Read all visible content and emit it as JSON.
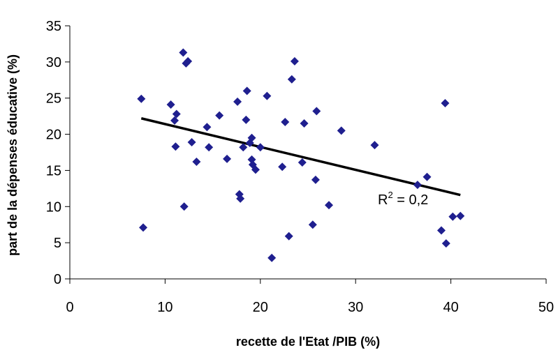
{
  "chart_data": {
    "type": "scatter",
    "xlabel": "recette de l'Etat /PIB (%)",
    "ylabel": "part de la dépenses éducative (%)",
    "xlim": [
      0,
      50
    ],
    "ylim": [
      0,
      35
    ],
    "xticks": [
      0,
      10,
      20,
      30,
      40,
      50
    ],
    "yticks": [
      0,
      5,
      10,
      15,
      20,
      25,
      30,
      35
    ],
    "grid": false,
    "marker": "diamond",
    "marker_color": "#1F1F8F",
    "trendline": {
      "type": "linear",
      "x": [
        7.5,
        41.0
      ],
      "y": [
        22.2,
        11.6
      ],
      "color": "#000000",
      "r2_label": "R",
      "r2_sup": "2",
      "r2_value": " = 0,2"
    },
    "points": [
      {
        "x": 7.5,
        "y": 24.9
      },
      {
        "x": 7.7,
        "y": 7.1
      },
      {
        "x": 10.6,
        "y": 24.1
      },
      {
        "x": 11.0,
        "y": 21.9
      },
      {
        "x": 11.2,
        "y": 22.8
      },
      {
        "x": 11.1,
        "y": 18.3
      },
      {
        "x": 11.9,
        "y": 31.3
      },
      {
        "x": 12.2,
        "y": 29.8
      },
      {
        "x": 12.4,
        "y": 30.1
      },
      {
        "x": 12.0,
        "y": 10.0
      },
      {
        "x": 12.8,
        "y": 18.9
      },
      {
        "x": 13.3,
        "y": 16.2
      },
      {
        "x": 14.4,
        "y": 21.0
      },
      {
        "x": 14.6,
        "y": 18.2
      },
      {
        "x": 15.7,
        "y": 22.6
      },
      {
        "x": 16.5,
        "y": 16.6
      },
      {
        "x": 17.6,
        "y": 24.5
      },
      {
        "x": 17.8,
        "y": 11.7
      },
      {
        "x": 17.9,
        "y": 11.1
      },
      {
        "x": 18.2,
        "y": 18.2
      },
      {
        "x": 18.6,
        "y": 26.0
      },
      {
        "x": 18.5,
        "y": 22.0
      },
      {
        "x": 18.9,
        "y": 18.8
      },
      {
        "x": 19.1,
        "y": 19.5
      },
      {
        "x": 19.1,
        "y": 16.5
      },
      {
        "x": 19.2,
        "y": 15.8
      },
      {
        "x": 19.5,
        "y": 15.1
      },
      {
        "x": 20.0,
        "y": 18.2
      },
      {
        "x": 20.7,
        "y": 25.3
      },
      {
        "x": 21.2,
        "y": 2.9
      },
      {
        "x": 22.3,
        "y": 15.5
      },
      {
        "x": 22.6,
        "y": 21.7
      },
      {
        "x": 23.0,
        "y": 5.9
      },
      {
        "x": 23.3,
        "y": 27.6
      },
      {
        "x": 23.6,
        "y": 30.1
      },
      {
        "x": 24.4,
        "y": 16.1
      },
      {
        "x": 24.6,
        "y": 21.5
      },
      {
        "x": 25.5,
        "y": 7.5
      },
      {
        "x": 25.8,
        "y": 13.7
      },
      {
        "x": 25.9,
        "y": 23.2
      },
      {
        "x": 27.2,
        "y": 10.2
      },
      {
        "x": 28.5,
        "y": 20.5
      },
      {
        "x": 32.0,
        "y": 18.5
      },
      {
        "x": 36.5,
        "y": 13.0
      },
      {
        "x": 37.5,
        "y": 14.1
      },
      {
        "x": 39.0,
        "y": 6.7
      },
      {
        "x": 39.4,
        "y": 24.3
      },
      {
        "x": 39.5,
        "y": 4.9
      },
      {
        "x": 40.2,
        "y": 8.6
      },
      {
        "x": 41.0,
        "y": 8.7
      }
    ]
  }
}
